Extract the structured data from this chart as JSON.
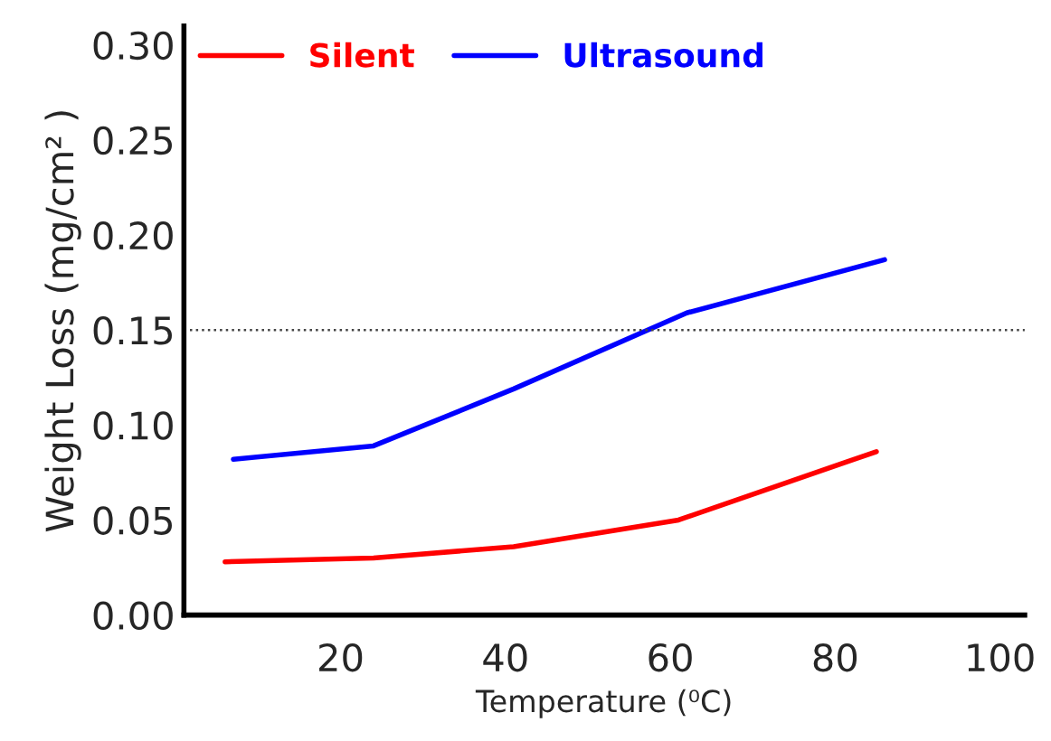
{
  "chart_data": {
    "type": "line",
    "xlabel": "Temperature (⁰C)",
    "ylabel": "Weight Loss (mg/cm² )",
    "xlim": [
      1,
      103
    ],
    "xticks": [
      20,
      40,
      60,
      80,
      100
    ],
    "ylim": [
      0,
      0.31
    ],
    "yticks": [
      {
        "value": 0,
        "label": "0.00"
      },
      {
        "value": 0.05,
        "label": "0.05"
      },
      {
        "value": 0.1,
        "label": "0.10"
      },
      {
        "value": 0.15,
        "label": "0.15"
      },
      {
        "value": 0.2,
        "label": "0.20"
      },
      {
        "value": 0.25,
        "label": "0.25"
      },
      {
        "value": 0.3,
        "label": "0.30"
      }
    ],
    "series": [
      {
        "name": "Silent",
        "color": "#ff0000",
        "x": [
          6,
          24,
          41,
          61,
          85
        ],
        "values": [
          0.028,
          0.03,
          0.036,
          0.05,
          0.086
        ]
      },
      {
        "name": "Ultrasound",
        "color": "#0000ff",
        "x": [
          7,
          24,
          41,
          62,
          86
        ],
        "values": [
          0.082,
          0.089,
          0.119,
          0.159,
          0.187
        ]
      }
    ],
    "ref_lines": [
      {
        "axis": "y",
        "value": 0.15,
        "color": "#444444",
        "line_style": "dotted"
      }
    ],
    "legend": "top left",
    "grid": false,
    "marker": "none",
    "line_style": "solid"
  }
}
